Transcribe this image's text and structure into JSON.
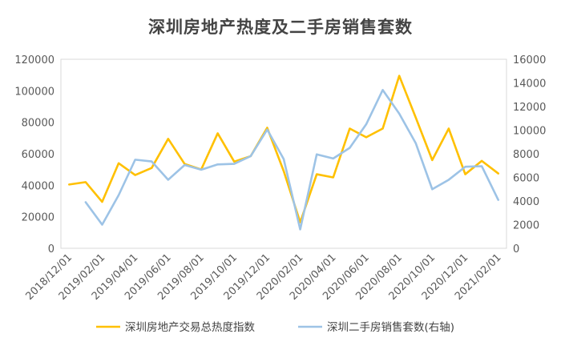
{
  "chart_data": {
    "type": "line",
    "title": "深圳房地产热度及二手房销售套数",
    "categories": [
      "2018/12/01",
      "2019/01/01",
      "2019/02/01",
      "2019/03/01",
      "2019/04/01",
      "2019/05/01",
      "2019/06/01",
      "2019/07/01",
      "2019/08/01",
      "2019/09/01",
      "2019/10/01",
      "2019/11/01",
      "2019/12/01",
      "2020/01/01",
      "2020/02/01",
      "2020/03/01",
      "2020/04/01",
      "2020/05/01",
      "2020/06/01",
      "2020/07/01",
      "2020/08/01",
      "2020/09/01",
      "2020/10/01",
      "2020/11/01",
      "2020/12/01",
      "2021/01/01",
      "2021/02/01"
    ],
    "x_tick_labels": [
      "2018/12/01",
      "2019/02/01",
      "2019/04/01",
      "2019/06/01",
      "2019/08/01",
      "2019/10/01",
      "2019/12/01",
      "2020/02/01",
      "2020/04/01",
      "2020/06/01",
      "2020/08/01",
      "2020/10/01",
      "2020/12/01",
      "2021/02/01"
    ],
    "y_left": {
      "min": 0,
      "max": 120000,
      "ticks": [
        "0",
        "20000",
        "40000",
        "60000",
        "80000",
        "100000",
        "120000"
      ]
    },
    "y_right": {
      "min": 0,
      "max": 16000,
      "ticks": [
        "0",
        "2000",
        "4000",
        "6000",
        "8000",
        "10000",
        "12000",
        "14000",
        "16000"
      ]
    },
    "grid": false,
    "legend_position": "bottom",
    "series": [
      {
        "name": "深圳房地产交易总热度指数",
        "axis": "left",
        "color": "#FFC000",
        "values": [
          40500,
          42000,
          29500,
          54000,
          46500,
          51000,
          69500,
          53500,
          50000,
          73000,
          55000,
          58500,
          76500,
          49000,
          16500,
          47000,
          45000,
          76000,
          70500,
          76000,
          109500,
          83000,
          56000,
          76000,
          47000,
          55500,
          47500
        ]
      },
      {
        "name": "深圳二手房销售套数(右轴)",
        "axis": "right",
        "color": "#9DC3E6",
        "values": [
          null,
          3900,
          2000,
          4500,
          7500,
          7350,
          5800,
          7050,
          6650,
          7100,
          7150,
          7800,
          10050,
          7550,
          1600,
          7950,
          7600,
          8500,
          10500,
          13400,
          11400,
          8900,
          5000,
          5800,
          6900,
          6950,
          4100
        ]
      }
    ]
  }
}
